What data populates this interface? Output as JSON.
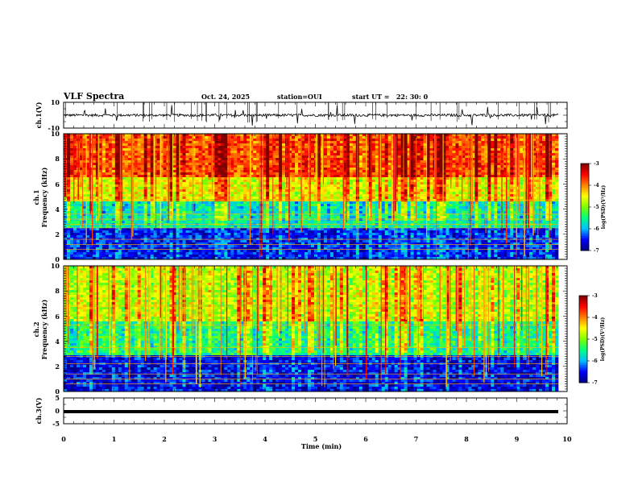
{
  "header": {
    "title": "VLF Spectra",
    "date": "Oct. 24, 2025",
    "station": "station=OUI",
    "start": "start UT =   22: 30: 0"
  },
  "chart_data": [
    {
      "type": "line",
      "panel": "ch1-waveform",
      "ylabel": "ch.1(V)",
      "ylim": [
        -10,
        10
      ],
      "yticks": [
        "10",
        "-10"
      ],
      "xlim": [
        0,
        10
      ],
      "description_values": {
        "baseline": 0,
        "typical_amplitude": 1,
        "spike_max": 10
      }
    },
    {
      "type": "heatmap",
      "panel": "ch1-spectrogram",
      "ylabel": "ch.1",
      "ylabel2": "Frequency (kHz)",
      "ylim": [
        0,
        10
      ],
      "yticks": [
        "0",
        "2",
        "4",
        "6",
        "8",
        "10"
      ],
      "xlim": [
        0,
        10
      ],
      "colorbar": {
        "label": "log(PSD)(V²/Hz)",
        "ticks": [
          "-3",
          "-4",
          "-5",
          "-6",
          "-7"
        ],
        "range": [
          -7,
          -3
        ]
      },
      "bands": [
        {
          "fmin": 0,
          "fmax": 2.5,
          "level": -6.5
        },
        {
          "fmin": 2.5,
          "fmax": 4.6,
          "level": -5.7
        },
        {
          "fmin": 4.6,
          "fmax": 6.5,
          "level": -4.6
        },
        {
          "fmin": 6.5,
          "fmax": 10,
          "level": -3.8
        }
      ],
      "lines_khz": [
        0.8,
        1.2,
        1.6,
        2.5,
        2.8,
        3.2,
        3.6,
        4.7
      ]
    },
    {
      "type": "heatmap",
      "panel": "ch2-spectrogram",
      "ylabel": "ch.2",
      "ylabel2": "Frequency (kHz)",
      "ylim": [
        0,
        10
      ],
      "yticks": [
        "0",
        "2",
        "4",
        "6",
        "8",
        "10"
      ],
      "xlim": [
        0,
        10
      ],
      "colorbar": {
        "label": "log(PSD)(V²/Hz)",
        "ticks": [
          "-3",
          "-4",
          "-5",
          "-6",
          "-7"
        ],
        "range": [
          -7,
          -3
        ]
      },
      "bands": [
        {
          "fmin": 0,
          "fmax": 2.8,
          "level": -6.6
        },
        {
          "fmin": 2.8,
          "fmax": 5.5,
          "level": -5.5
        },
        {
          "fmin": 5.5,
          "fmax": 10,
          "level": -4.8
        }
      ],
      "lines_khz": [
        0.6,
        1.0,
        1.4,
        2.2,
        2.8,
        3.5,
        5.3,
        6.8
      ]
    },
    {
      "type": "line",
      "panel": "ch3-waveform",
      "ylabel": "ch.3(V)",
      "ylim": [
        -5,
        5
      ],
      "yticks": [
        "5",
        "0",
        "-5"
      ],
      "xlim": [
        0,
        10
      ],
      "description_values": {
        "baseline": -1,
        "thickness": 0.5
      }
    }
  ],
  "xaxis": {
    "label": "Time (min)",
    "ticks": [
      "0",
      "1",
      "2",
      "3",
      "4",
      "5",
      "6",
      "7",
      "8",
      "9",
      "10"
    ]
  },
  "colors": {
    "colormap": [
      "#00007f",
      "#0000ff",
      "#00bfff",
      "#00ff7f",
      "#7fff00",
      "#ffff00",
      "#ff7f00",
      "#ff0000",
      "#7f0000"
    ]
  }
}
